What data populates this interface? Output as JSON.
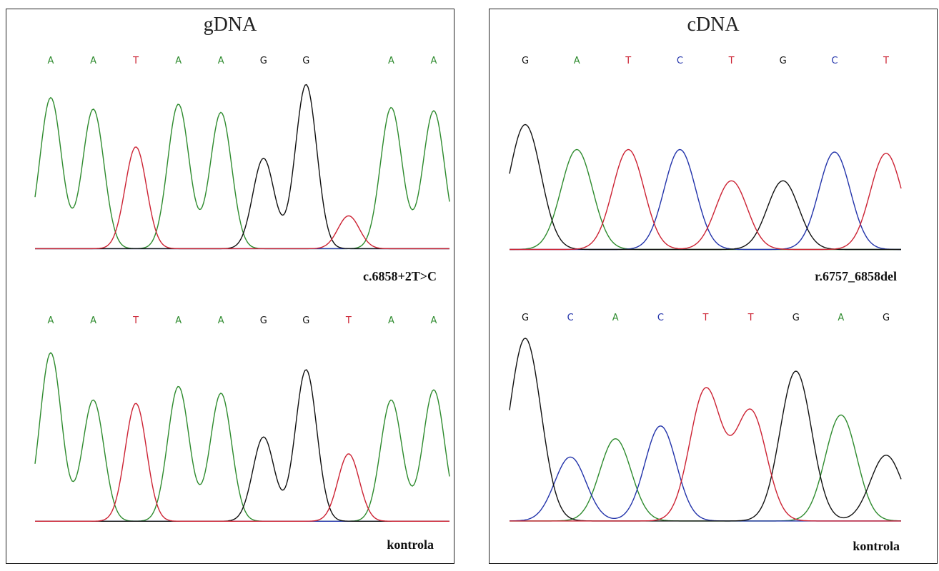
{
  "colors": {
    "A": "#2e8b2e",
    "T": "#cc2233",
    "G": "#111111",
    "C": "#2233aa"
  },
  "panels": [
    {
      "id": "gdna",
      "title": "gDNA",
      "tracks": [
        {
          "label": "c.6858+2T>C",
          "bases": [
            "A",
            "A",
            "T",
            "A",
            "A",
            "G",
            "G",
            "",
            "A",
            "A"
          ],
          "peaks": [
            {
              "base": "A",
              "h": 0.92
            },
            {
              "base": "A",
              "h": 0.85
            },
            {
              "base": "T",
              "h": 0.62
            },
            {
              "base": "A",
              "h": 0.88
            },
            {
              "base": "A",
              "h": 0.83
            },
            {
              "base": "G",
              "h": 0.55
            },
            {
              "base": "G",
              "h": 1.0
            },
            {
              "base": "T",
              "h": 0.2
            },
            {
              "base": "A",
              "h": 0.86
            },
            {
              "base": "A",
              "h": 0.84
            }
          ]
        },
        {
          "label": "kontrola",
          "bases": [
            "A",
            "A",
            "T",
            "A",
            "A",
            "G",
            "G",
            "T",
            "A",
            "A"
          ],
          "peaks": [
            {
              "base": "A",
              "h": 1.0
            },
            {
              "base": "A",
              "h": 0.72
            },
            {
              "base": "T",
              "h": 0.7
            },
            {
              "base": "A",
              "h": 0.8
            },
            {
              "base": "A",
              "h": 0.76
            },
            {
              "base": "G",
              "h": 0.5
            },
            {
              "base": "G",
              "h": 0.9
            },
            {
              "base": "T",
              "h": 0.4
            },
            {
              "base": "A",
              "h": 0.72
            },
            {
              "base": "A",
              "h": 0.78
            }
          ]
        }
      ]
    },
    {
      "id": "cdna",
      "title": "cDNA",
      "tracks": [
        {
          "label": "r.6757_6858del",
          "bases": [
            "G",
            "A",
            "T",
            "C",
            "T",
            "G",
            "C",
            "T"
          ],
          "peaks": [
            {
              "base": "G",
              "h": 1.0
            },
            {
              "base": "A",
              "h": 0.8
            },
            {
              "base": "T",
              "h": 0.8
            },
            {
              "base": "C",
              "h": 0.8
            },
            {
              "base": "T",
              "h": 0.55
            },
            {
              "base": "G",
              "h": 0.55
            },
            {
              "base": "C",
              "h": 0.78
            },
            {
              "base": "T",
              "h": 0.77
            }
          ]
        },
        {
          "label": "kontrola",
          "bases": [
            "G",
            "C",
            "A",
            "C",
            "T",
            "T",
            "G",
            "A",
            "G"
          ],
          "peaks": [
            {
              "base": "G",
              "h": 1.0
            },
            {
              "base": "C",
              "h": 0.35
            },
            {
              "base": "A",
              "h": 0.45
            },
            {
              "base": "C",
              "h": 0.52
            },
            {
              "base": "T",
              "h": 0.72
            },
            {
              "base": "T",
              "h": 0.6
            },
            {
              "base": "G",
              "h": 0.82
            },
            {
              "base": "A",
              "h": 0.58
            },
            {
              "base": "G",
              "h": 0.36
            }
          ]
        }
      ]
    }
  ]
}
